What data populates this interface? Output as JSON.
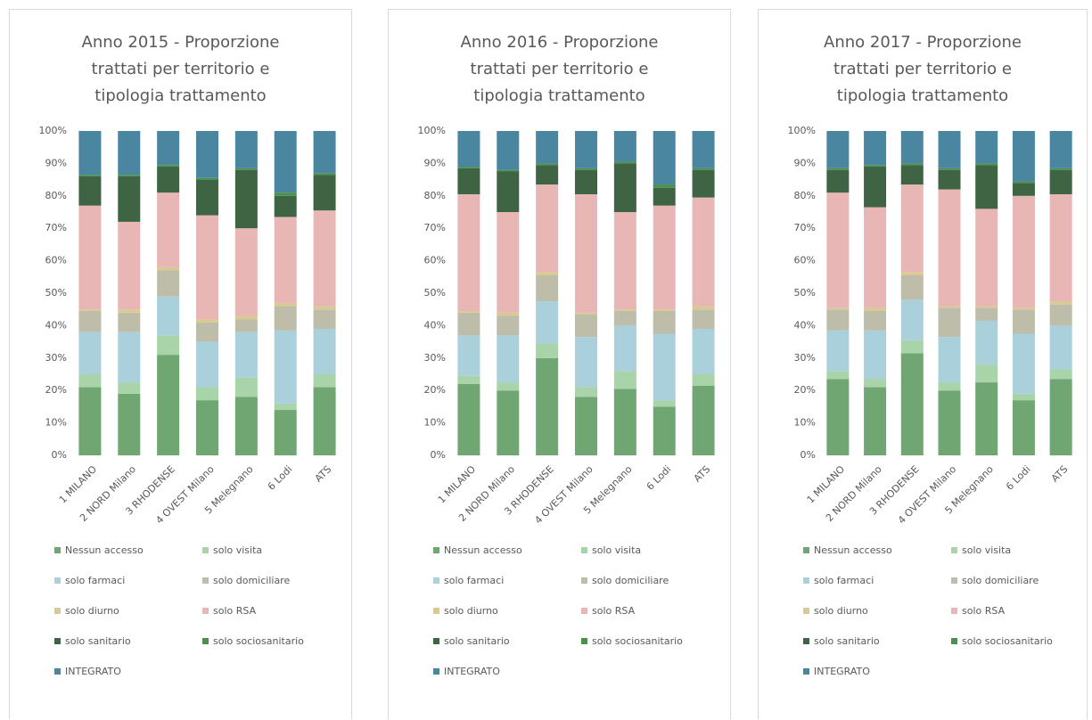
{
  "chart_data": [
    {
      "type": "bar",
      "stacked": true,
      "title": "Anno 2015 - Proporzione trattati per territorio e tipologia trattamento",
      "categories": [
        "1 MILANO",
        "2 NORD Milano",
        "3 RHODENSE",
        "4 OVEST Milano",
        "5 Melegnano",
        "6 Lodi",
        "ATS"
      ],
      "ylim": [
        0,
        100
      ],
      "yticks": [
        {
          "value": 0,
          "label": "0%"
        },
        {
          "value": 10,
          "label": "10%"
        },
        {
          "value": 20,
          "label": "20%"
        },
        {
          "value": 30,
          "label": "30%"
        },
        {
          "value": 40,
          "label": "40%"
        },
        {
          "value": 50,
          "label": "50%"
        },
        {
          "value": 60,
          "label": "60%"
        },
        {
          "value": 70,
          "label": "70%"
        },
        {
          "value": 80,
          "label": "80%"
        },
        {
          "value": 90,
          "label": "90%"
        },
        {
          "value": 100,
          "label": "100%"
        }
      ],
      "series": [
        {
          "name": "Nessun accesso",
          "color": "#70a672",
          "values": [
            21,
            19,
            31,
            17,
            18,
            14,
            21
          ]
        },
        {
          "name": "solo visita",
          "color": "#a9d3a9",
          "values": [
            4,
            3.5,
            6,
            4,
            6,
            2,
            4
          ]
        },
        {
          "name": "solo farmaci",
          "color": "#a9d0db",
          "values": [
            13,
            15.5,
            12,
            14,
            14,
            22.5,
            14
          ]
        },
        {
          "name": "solo domiciliare",
          "color": "#bdbda9",
          "values": [
            6.5,
            6,
            8,
            6,
            4,
            7.5,
            6
          ]
        },
        {
          "name": "solo diurno",
          "color": "#d9ca93",
          "values": [
            0.5,
            1,
            1,
            1,
            1,
            1,
            1
          ]
        },
        {
          "name": "solo RSA",
          "color": "#e9b6b6",
          "values": [
            32,
            27,
            23,
            32,
            27,
            26.5,
            29.5
          ]
        },
        {
          "name": "solo sanitario",
          "color": "#3e6443",
          "values": [
            9,
            14,
            8,
            11,
            18,
            6.5,
            11
          ]
        },
        {
          "name": "solo sociosanitario",
          "color": "#4b904c",
          "values": [
            0.5,
            0.5,
            0.5,
            0.5,
            0.5,
            1,
            0.5
          ]
        },
        {
          "name": "INTEGRATO",
          "color": "#4a86a0",
          "values": [
            13.5,
            13.5,
            10.5,
            14.5,
            11.5,
            19,
            13
          ]
        }
      ]
    },
    {
      "type": "bar",
      "stacked": true,
      "title": "Anno 2016 - Proporzione trattati per territorio e tipologia trattamento",
      "categories": [
        "1 MILANO",
        "2 NORD Milano",
        "3 RHODENSE",
        "4 OVEST Milano",
        "5 Melegnano",
        "6 Lodi",
        "ATS"
      ],
      "ylim": [
        0,
        100
      ],
      "yticks": [
        {
          "value": 0,
          "label": "0%"
        },
        {
          "value": 10,
          "label": "10%"
        },
        {
          "value": 20,
          "label": "20%"
        },
        {
          "value": 30,
          "label": "30%"
        },
        {
          "value": 40,
          "label": "40%"
        },
        {
          "value": 50,
          "label": "50%"
        },
        {
          "value": 60,
          "label": "60%"
        },
        {
          "value": 70,
          "label": "70%"
        },
        {
          "value": 80,
          "label": "80%"
        },
        {
          "value": 90,
          "label": "90%"
        },
        {
          "value": 100,
          "label": "100%"
        }
      ],
      "series": [
        {
          "name": "Nessun accesso",
          "color": "#70a672",
          "values": [
            22,
            20,
            30,
            18,
            20.5,
            15,
            21.5
          ]
        },
        {
          "name": "solo visita",
          "color": "#a9d3a9",
          "values": [
            2.5,
            2.5,
            4.5,
            3,
            5.5,
            2,
            3.5
          ]
        },
        {
          "name": "solo farmaci",
          "color": "#a9d0db",
          "values": [
            12.5,
            14.5,
            13,
            15.5,
            14,
            20.5,
            14
          ]
        },
        {
          "name": "solo domiciliare",
          "color": "#bdbda9",
          "values": [
            7,
            6,
            8,
            7,
            4.5,
            7,
            6
          ]
        },
        {
          "name": "solo diurno",
          "color": "#d9ca93",
          "values": [
            0.5,
            1,
            1,
            0.5,
            0.5,
            0.5,
            1
          ]
        },
        {
          "name": "solo RSA",
          "color": "#e9b6b6",
          "values": [
            36,
            31,
            27,
            36.5,
            30,
            32,
            33.5
          ]
        },
        {
          "name": "solo sanitario",
          "color": "#3e6443",
          "values": [
            8,
            12.5,
            6,
            7.5,
            15,
            5.5,
            8.5
          ]
        },
        {
          "name": "solo sociosanitario",
          "color": "#4b904c",
          "values": [
            0.5,
            0.5,
            0.5,
            0.5,
            0.5,
            1,
            0.5
          ]
        },
        {
          "name": "INTEGRATO",
          "color": "#4a86a0",
          "values": [
            11,
            12,
            10,
            11.5,
            9.5,
            16.5,
            11.5
          ]
        }
      ]
    },
    {
      "type": "bar",
      "stacked": true,
      "title": "Anno 2017 - Proporzione trattati per territorio e tipologia trattamento",
      "categories": [
        "1 MILANO",
        "2 NORD Milano",
        "3 RHODENSE",
        "4 OVEST Milano",
        "5 Melegnano",
        "6 Lodi",
        "ATS"
      ],
      "ylim": [
        0,
        100
      ],
      "yticks": [
        {
          "value": 0,
          "label": "0%"
        },
        {
          "value": 10,
          "label": "10%"
        },
        {
          "value": 20,
          "label": "20%"
        },
        {
          "value": 30,
          "label": "30%"
        },
        {
          "value": 40,
          "label": "40%"
        },
        {
          "value": 50,
          "label": "50%"
        },
        {
          "value": 60,
          "label": "60%"
        },
        {
          "value": 70,
          "label": "70%"
        },
        {
          "value": 80,
          "label": "80%"
        },
        {
          "value": 90,
          "label": "90%"
        },
        {
          "value": 100,
          "label": "100%"
        }
      ],
      "series": [
        {
          "name": "Nessun accesso",
          "color": "#70a672",
          "values": [
            23.5,
            21,
            31.5,
            20,
            22.5,
            17,
            23.5
          ]
        },
        {
          "name": "solo visita",
          "color": "#a9d3a9",
          "values": [
            2.5,
            2.5,
            4,
            2.5,
            5.5,
            2,
            3
          ]
        },
        {
          "name": "solo farmaci",
          "color": "#a9d0db",
          "values": [
            12.5,
            15,
            12.5,
            14,
            13.5,
            18.5,
            13.5
          ]
        },
        {
          "name": "solo domiciliare",
          "color": "#bdbda9",
          "values": [
            6.5,
            6,
            7.5,
            9,
            4,
            7.5,
            6.5
          ]
        },
        {
          "name": "solo diurno",
          "color": "#d9ca93",
          "values": [
            0.5,
            1,
            1,
            0.5,
            0.5,
            0.5,
            1
          ]
        },
        {
          "name": "solo RSA",
          "color": "#e9b6b6",
          "values": [
            35.5,
            31,
            27,
            36,
            30,
            34.5,
            33
          ]
        },
        {
          "name": "solo sanitario",
          "color": "#3e6443",
          "values": [
            7,
            12.5,
            6,
            6,
            13.5,
            4,
            7.5
          ]
        },
        {
          "name": "solo sociosanitario",
          "color": "#4b904c",
          "values": [
            0.5,
            0.5,
            0.5,
            0.5,
            0.5,
            0.5,
            0.5
          ]
        },
        {
          "name": "INTEGRATO",
          "color": "#4a86a0",
          "values": [
            11.5,
            10.5,
            10,
            11.5,
            10,
            15.5,
            11.5
          ]
        }
      ]
    }
  ]
}
